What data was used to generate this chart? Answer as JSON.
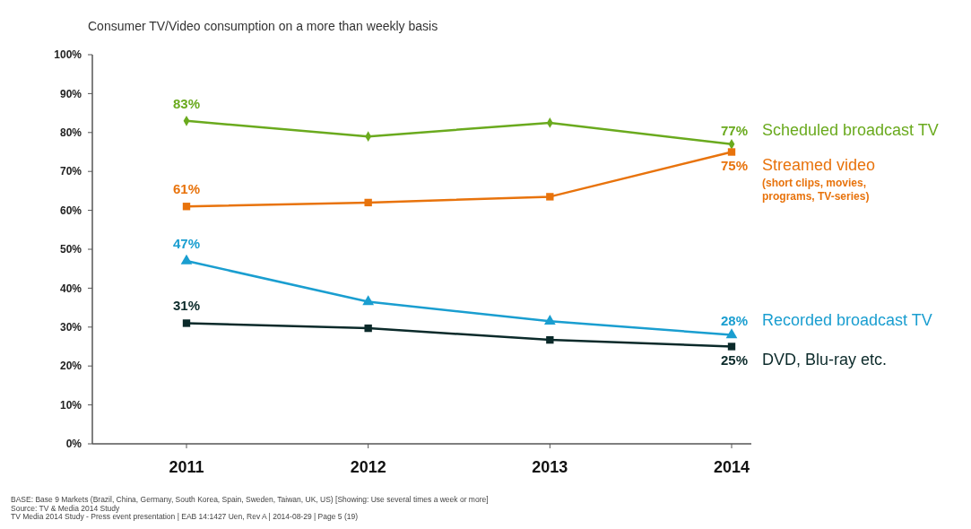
{
  "chart_data": {
    "type": "line",
    "title": "Consumer TV/Video consumption on a more than weekly basis",
    "categories": [
      "2011",
      "2012",
      "2013",
      "2014"
    ],
    "ylim": [
      0,
      100
    ],
    "yticks": [
      {
        "value": 0,
        "label": "0%"
      },
      {
        "value": 10,
        "label": "10%"
      },
      {
        "value": 20,
        "label": "20%"
      },
      {
        "value": 30,
        "label": "30%"
      },
      {
        "value": 40,
        "label": "40%"
      },
      {
        "value": 50,
        "label": "50%"
      },
      {
        "value": 60,
        "label": "60%"
      },
      {
        "value": 70,
        "label": "70%"
      },
      {
        "value": 80,
        "label": "80%"
      },
      {
        "value": 90,
        "label": "90%"
      },
      {
        "value": 100,
        "label": "100%"
      }
    ],
    "grid": false,
    "series": [
      {
        "name": "Scheduled broadcast TV",
        "color": "#6aaa1e",
        "marker": "diamond",
        "values": [
          83,
          79,
          82.5,
          77
        ],
        "value_labels": [
          "83%",
          null,
          null,
          "77%"
        ]
      },
      {
        "name": "Streamed video",
        "color": "#e8730c",
        "marker": "square",
        "values": [
          61,
          62,
          63.5,
          75
        ],
        "value_labels": [
          "61%",
          null,
          null,
          "75%"
        ]
      },
      {
        "name": "Recorded broadcast TV",
        "color": "#1a9ed0",
        "marker": "triangle",
        "values": [
          47,
          36.5,
          31.5,
          28
        ],
        "value_labels": [
          "47%",
          null,
          null,
          "28%"
        ]
      },
      {
        "name": "DVD, Blu-ray etc.",
        "color": "#0b2a2a",
        "marker": "square",
        "values": [
          31,
          29.7,
          26.7,
          25
        ],
        "value_labels": [
          "31%",
          null,
          null,
          "25%"
        ]
      }
    ],
    "annotations": [
      "(short clips, movies, programs, TV-series)",
      "BASE: Base 9 Markets (Brazil, China, Germany, South Korea, Spain, Sweden, Taiwan, UK, US) [Showing: Use several times a week or more]",
      "Source: TV & Media 2014 Study",
      "TV Media 2014 Study - Press event presentation | EAB 14:1427 Uen, Rev A | 2014-08-29 | Page 5 (19)"
    ]
  }
}
